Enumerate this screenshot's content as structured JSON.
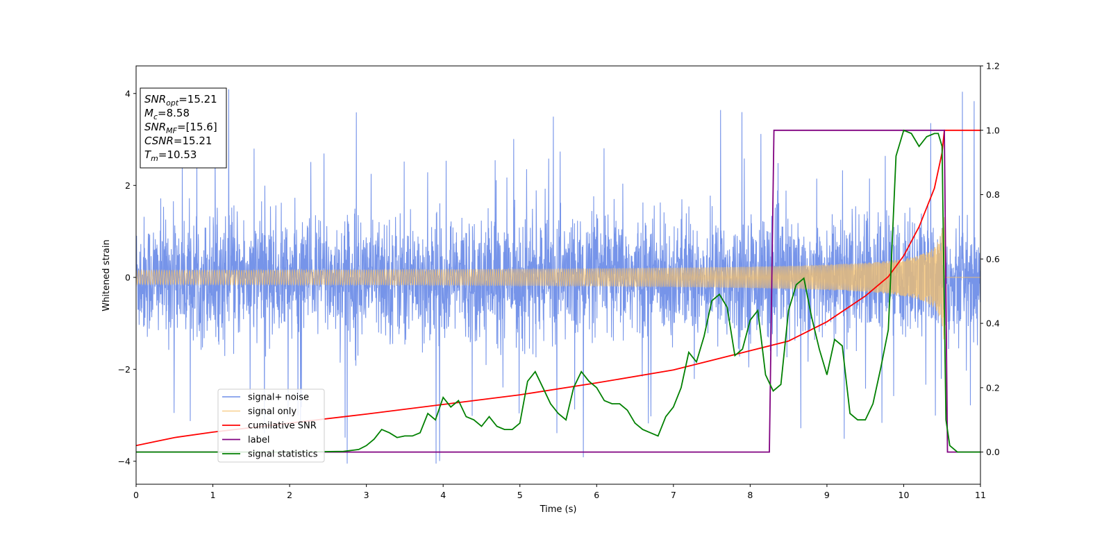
{
  "chart_data": {
    "type": "line",
    "xlabel": "Time (s)",
    "ylabel": "Whitened strain",
    "xlim": [
      0,
      11
    ],
    "ylim_left": [
      -4.5,
      4.6
    ],
    "ylim_right": [
      -0.1,
      1.2
    ],
    "x_ticks": [
      0,
      1,
      2,
      3,
      4,
      5,
      6,
      7,
      8,
      9,
      10,
      11
    ],
    "y_ticks_left": [
      -4,
      -2,
      0,
      2,
      4
    ],
    "y_ticks_right": [
      "0.0",
      "0.2",
      "0.4",
      "0.6",
      "0.8",
      "1.0",
      "1.2"
    ],
    "grid": false,
    "legend_position": "lower-left",
    "info_box": [
      {
        "sym": "SNR",
        "sub": "opt",
        "val": "=15.21"
      },
      {
        "sym": "M",
        "sub": "c",
        "val": "=8.58"
      },
      {
        "sym": "SNR",
        "sub": "MF",
        "val": "=[15.6]"
      },
      {
        "sym": "CSNR",
        "sub": "",
        "val": "=15.21"
      },
      {
        "sym": "T",
        "sub": "m",
        "val": "=10.53"
      }
    ],
    "series": [
      {
        "name": "signal+ noise",
        "axis": "left",
        "color": "#6f8ee8",
        "style": "noise",
        "sigma": 0.65,
        "spike_max": 4.15,
        "x_range": [
          0,
          11
        ]
      },
      {
        "name": "signal only",
        "axis": "left",
        "color": "#f5c06a",
        "style": "chirp",
        "amplitude_start": 0.06,
        "amplitude_end": 1.6,
        "merger_time": 10.53
      },
      {
        "name": "cumilative SNR",
        "axis": "right",
        "color": "#ff0000",
        "x": [
          0,
          0.5,
          1,
          2,
          3,
          4,
          5,
          6,
          7,
          8,
          8.5,
          9,
          9.5,
          9.8,
          10,
          10.2,
          10.4,
          10.5,
          10.53,
          10.55,
          11
        ],
        "values": [
          0.02,
          0.045,
          0.062,
          0.09,
          0.118,
          0.148,
          0.178,
          0.215,
          0.255,
          0.315,
          0.345,
          0.405,
          0.485,
          0.545,
          0.61,
          0.7,
          0.82,
          0.93,
          1.0,
          1.0,
          1.0
        ]
      },
      {
        "name": "label",
        "axis": "right",
        "color": "#800080",
        "x": [
          0,
          8.25,
          8.31,
          10.53,
          10.57,
          11
        ],
        "values": [
          0,
          0,
          1,
          1,
          0,
          0
        ]
      },
      {
        "name": "signal statistics",
        "axis": "right",
        "color": "#008000",
        "x": [
          0,
          1,
          2,
          2.7,
          2.9,
          3.0,
          3.1,
          3.2,
          3.3,
          3.4,
          3.5,
          3.6,
          3.7,
          3.8,
          3.9,
          4.0,
          4.1,
          4.2,
          4.3,
          4.4,
          4.5,
          4.6,
          4.7,
          4.8,
          4.9,
          5.0,
          5.1,
          5.2,
          5.3,
          5.4,
          5.5,
          5.6,
          5.7,
          5.8,
          5.9,
          6.0,
          6.1,
          6.2,
          6.3,
          6.4,
          6.5,
          6.6,
          6.7,
          6.8,
          6.9,
          7.0,
          7.1,
          7.2,
          7.3,
          7.4,
          7.5,
          7.6,
          7.7,
          7.8,
          7.9,
          8.0,
          8.1,
          8.2,
          8.3,
          8.4,
          8.5,
          8.6,
          8.7,
          8.8,
          8.9,
          9.0,
          9.1,
          9.2,
          9.3,
          9.4,
          9.5,
          9.6,
          9.7,
          9.8,
          9.9,
          10.0,
          10.1,
          10.2,
          10.3,
          10.4,
          10.45,
          10.5,
          10.55,
          10.6,
          10.7,
          10.8,
          11
        ],
        "values": [
          0,
          0,
          0,
          0.002,
          0.008,
          0.02,
          0.04,
          0.07,
          0.06,
          0.045,
          0.05,
          0.05,
          0.06,
          0.12,
          0.1,
          0.17,
          0.14,
          0.16,
          0.11,
          0.1,
          0.08,
          0.11,
          0.08,
          0.07,
          0.07,
          0.09,
          0.22,
          0.25,
          0.2,
          0.15,
          0.12,
          0.1,
          0.2,
          0.25,
          0.22,
          0.2,
          0.16,
          0.15,
          0.15,
          0.13,
          0.09,
          0.07,
          0.06,
          0.05,
          0.11,
          0.14,
          0.2,
          0.31,
          0.28,
          0.36,
          0.47,
          0.49,
          0.45,
          0.3,
          0.32,
          0.41,
          0.44,
          0.24,
          0.19,
          0.21,
          0.44,
          0.52,
          0.54,
          0.42,
          0.32,
          0.24,
          0.35,
          0.33,
          0.12,
          0.1,
          0.1,
          0.15,
          0.26,
          0.38,
          0.92,
          1.0,
          0.99,
          0.95,
          0.98,
          0.99,
          0.99,
          0.95,
          0.1,
          0.02,
          0.0,
          0.0,
          0.0
        ]
      }
    ]
  }
}
